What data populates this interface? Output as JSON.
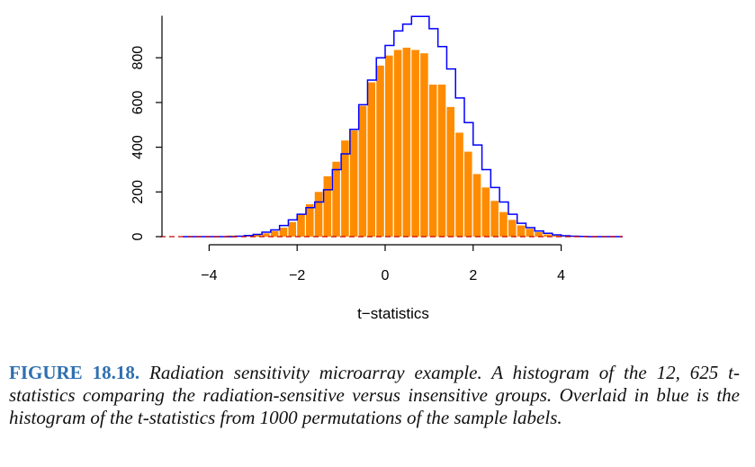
{
  "chart_data": {
    "type": "bar",
    "title": "",
    "xlabel": "t−statistics",
    "ylabel": "",
    "xlim": [
      -5.0,
      5.5
    ],
    "ylim": [
      0,
      980
    ],
    "x_ticks": [
      -4,
      -2,
      0,
      2,
      4
    ],
    "x_tick_labels": [
      "−4",
      "−2",
      "0",
      "2",
      "4"
    ],
    "y_ticks": [
      0,
      200,
      400,
      600,
      800
    ],
    "y_tick_labels": [
      "0",
      "200",
      "400",
      "600",
      "800"
    ],
    "bin_width": 0.2,
    "bin_edges_start": -4.6,
    "colors": {
      "bars": "#ff8c00",
      "overlay": "#0000ff",
      "baseline": "#cc0000"
    },
    "series": [
      {
        "style": "bars",
        "values": [
          0,
          0,
          0,
          0,
          0,
          5,
          3,
          5,
          10,
          15,
          25,
          40,
          65,
          100,
          145,
          200,
          270,
          335,
          430,
          475,
          585,
          690,
          765,
          810,
          835,
          845,
          835,
          820,
          680,
          680,
          580,
          465,
          380,
          280,
          220,
          160,
          110,
          75,
          50,
          35,
          20,
          10,
          5,
          5,
          2,
          0,
          0,
          0,
          0,
          0
        ]
      },
      {
        "style": "step",
        "values": [
          0,
          0,
          0,
          0,
          0,
          0,
          2,
          5,
          10,
          20,
          30,
          50,
          75,
          100,
          130,
          155,
          210,
          300,
          370,
          480,
          590,
          700,
          800,
          855,
          920,
          950,
          985,
          985,
          930,
          850,
          750,
          620,
          510,
          410,
          300,
          220,
          155,
          100,
          60,
          40,
          25,
          15,
          8,
          4,
          2,
          1,
          0,
          0,
          0,
          0
        ]
      }
    ]
  },
  "caption": {
    "label": "FIGURE 18.18.",
    "text": "Radiation sensitivity microarray example. A histogram of the 12, 625 t-statistics comparing the radiation-sensitive versus insensitive groups. Overlaid in blue is the histogram of the t-statistics from 1000 permutations of the sample labels."
  }
}
